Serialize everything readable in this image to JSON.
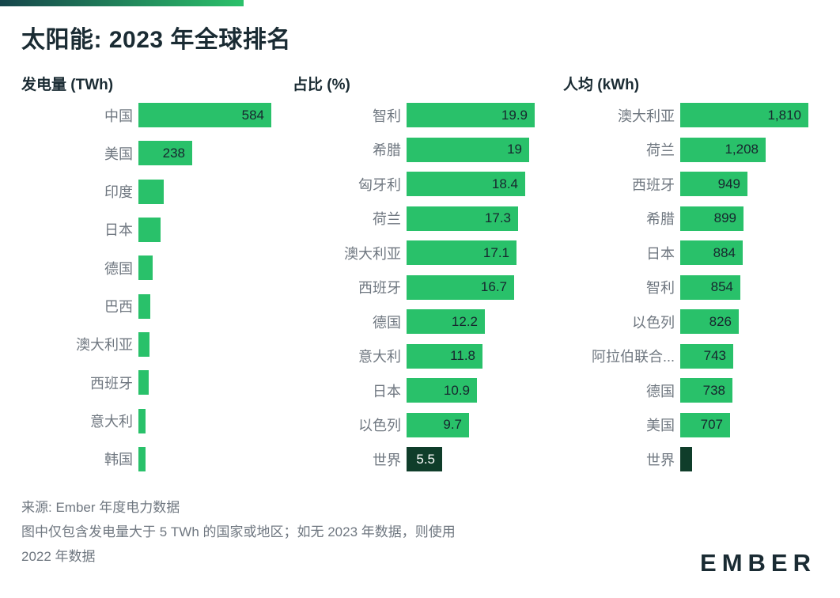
{
  "page": {
    "title": "太阳能: 2023 年全球排名",
    "footer": {
      "source": "来源: Ember 年度电力数据",
      "note_line1": "图中仅包含发电量大于 5 TWh 的国家或地区；如无 2023 年数据，则使用",
      "note_line2": "2022 年数据",
      "logo": "EMBER"
    },
    "colors": {
      "bar_green": "#29c16a",
      "world_bar_dark": "#0f3d2a",
      "text_dark": "#1a2b33",
      "label_gray": "#6f7780",
      "accent_gradient_start": "#16454b",
      "accent_gradient_end": "#2bc16a"
    }
  },
  "chart_data": [
    {
      "type": "bar",
      "orientation": "horizontal",
      "title": "发电量 (TWh)",
      "unit": "TWh",
      "xlim": [
        0,
        600
      ],
      "bars": [
        {
          "label": "中国",
          "value": 584,
          "value_label": "584",
          "world": false
        },
        {
          "label": "美国",
          "value": 238,
          "value_label": "238",
          "world": false
        },
        {
          "label": "印度",
          "value": 110,
          "value_label": "",
          "world": false
        },
        {
          "label": "日本",
          "value": 97,
          "value_label": "",
          "world": false
        },
        {
          "label": "德国",
          "value": 62,
          "value_label": "",
          "world": false
        },
        {
          "label": "巴西",
          "value": 52,
          "value_label": "",
          "world": false
        },
        {
          "label": "澳大利亚",
          "value": 48,
          "value_label": "",
          "world": false
        },
        {
          "label": "西班牙",
          "value": 45,
          "value_label": "",
          "world": false
        },
        {
          "label": "意大利",
          "value": 31,
          "value_label": "",
          "world": false
        },
        {
          "label": "韩国",
          "value": 30,
          "value_label": "",
          "world": false
        }
      ]
    },
    {
      "type": "bar",
      "orientation": "horizontal",
      "title": "占比 (%)",
      "unit": "%",
      "xlim": [
        0,
        20
      ],
      "bars": [
        {
          "label": "智利",
          "value": 19.9,
          "value_label": "19.9",
          "world": false
        },
        {
          "label": "希腊",
          "value": 19,
          "value_label": "19",
          "world": false
        },
        {
          "label": "匈牙利",
          "value": 18.4,
          "value_label": "18.4",
          "world": false
        },
        {
          "label": "荷兰",
          "value": 17.3,
          "value_label": "17.3",
          "world": false
        },
        {
          "label": "澳大利亚",
          "value": 17.1,
          "value_label": "17.1",
          "world": false
        },
        {
          "label": "西班牙",
          "value": 16.7,
          "value_label": "16.7",
          "world": false
        },
        {
          "label": "德国",
          "value": 12.2,
          "value_label": "12.2",
          "world": false
        },
        {
          "label": "意大利",
          "value": 11.8,
          "value_label": "11.8",
          "world": false
        },
        {
          "label": "日本",
          "value": 10.9,
          "value_label": "10.9",
          "world": false
        },
        {
          "label": "以色列",
          "value": 9.7,
          "value_label": "9.7",
          "world": false
        },
        {
          "label": "世界",
          "value": 5.5,
          "value_label": "5.5",
          "world": true
        }
      ]
    },
    {
      "type": "bar",
      "orientation": "horizontal",
      "title": "人均 (kWh)",
      "unit": "kWh",
      "xlim": [
        0,
        1900
      ],
      "bars": [
        {
          "label": "澳大利亚",
          "value": 1810,
          "value_label": "1,810",
          "world": false
        },
        {
          "label": "荷兰",
          "value": 1208,
          "value_label": "1,208",
          "world": false
        },
        {
          "label": "西班牙",
          "value": 949,
          "value_label": "949",
          "world": false
        },
        {
          "label": "希腊",
          "value": 899,
          "value_label": "899",
          "world": false
        },
        {
          "label": "日本",
          "value": 884,
          "value_label": "884",
          "world": false
        },
        {
          "label": "智利",
          "value": 854,
          "value_label": "854",
          "world": false
        },
        {
          "label": "以色列",
          "value": 826,
          "value_label": "826",
          "world": false
        },
        {
          "label": "阿拉伯联合...",
          "value": 743,
          "value_label": "743",
          "world": false
        },
        {
          "label": "德国",
          "value": 738,
          "value_label": "738",
          "world": false
        },
        {
          "label": "美国",
          "value": 707,
          "value_label": "707",
          "world": false
        },
        {
          "label": "世界",
          "value": 165,
          "value_label": "",
          "world": true
        }
      ]
    }
  ]
}
